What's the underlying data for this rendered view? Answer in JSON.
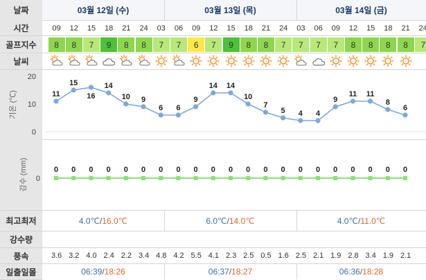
{
  "labels": {
    "date": "날짜",
    "time": "시간",
    "golf_index": "골프지수",
    "weather": "날씨",
    "temperature": "기온 (℃)",
    "precipitation": "강수 (mm)",
    "minmax": "최고최저",
    "rain_amount": "강수량",
    "wind_speed": "풍속",
    "sunrise_sunset": "일출일몰"
  },
  "days": [
    {
      "label": "03월 12일 (수)",
      "min": "4.0℃",
      "max": "16.0℃",
      "sunrise": "06:39",
      "sunset": "18:26"
    },
    {
      "label": "03월 13일 (목)",
      "min": "6.0℃",
      "max": "14.0℃",
      "sunrise": "06:37",
      "sunset": "18:27"
    },
    {
      "label": "03월 14일 (금)",
      "min": "4.0℃",
      "max": "11.0℃",
      "sunrise": "06:36",
      "sunset": "18:28"
    }
  ],
  "slots": [
    {
      "time": "09",
      "golf": "8",
      "weather": "partly-cloudy-icon",
      "temp": "11",
      "rain": "0",
      "wind": "3.6"
    },
    {
      "time": "12",
      "golf": "8",
      "weather": "partly-cloudy-icon",
      "temp": "15",
      "rain": "0",
      "wind": "3.2"
    },
    {
      "time": "15",
      "golf": "7",
      "weather": "partly-cloudy-icon",
      "temp": "16",
      "rain": "0",
      "wind": "4.0"
    },
    {
      "time": "18",
      "golf": "9",
      "weather": "cloudy-icon",
      "temp": "14",
      "rain": "0",
      "wind": "2.4"
    },
    {
      "time": "21",
      "golf": "8",
      "weather": "partly-cloudy-icon",
      "temp": "10",
      "rain": "0",
      "wind": "2.2"
    },
    {
      "time": "24",
      "golf": "8",
      "weather": "partly-cloudy-icon",
      "temp": "9",
      "rain": "0",
      "wind": "3.4"
    },
    {
      "time": "03",
      "golf": "7",
      "weather": "sunny-icon",
      "temp": "6",
      "rain": "0",
      "wind": "4.8"
    },
    {
      "time": "06",
      "golf": "7",
      "weather": "partly-cloudy-icon",
      "temp": "6",
      "rain": "0",
      "wind": "4.2"
    },
    {
      "time": "09",
      "golf": "6",
      "weather": "sunny-icon",
      "temp": "9",
      "rain": "0",
      "wind": "5.5"
    },
    {
      "time": "12",
      "golf": "7",
      "weather": "sunny-icon",
      "temp": "14",
      "rain": "0",
      "wind": "4.1"
    },
    {
      "time": "15",
      "golf": "9",
      "weather": "sunny-icon",
      "temp": "14",
      "rain": "0",
      "wind": "2.3"
    },
    {
      "time": "18",
      "golf": "8",
      "weather": "sunny-icon",
      "temp": "10",
      "rain": "0",
      "wind": "2.5"
    },
    {
      "time": "21",
      "golf": "8",
      "weather": "sunny-icon",
      "temp": "7",
      "rain": "0",
      "wind": "0.5"
    },
    {
      "time": "24",
      "golf": "7",
      "weather": "sunny-icon",
      "temp": "5",
      "rain": "0",
      "wind": "1.6"
    },
    {
      "time": "03",
      "golf": "7",
      "weather": "partly-cloudy-icon",
      "temp": "4",
      "rain": "0",
      "wind": "2.5"
    },
    {
      "time": "06",
      "golf": "7",
      "weather": "cloudy-icon",
      "temp": "4",
      "rain": "0",
      "wind": "2.1"
    },
    {
      "time": "09",
      "golf": "7",
      "weather": "sunny-icon",
      "temp": "9",
      "rain": "0",
      "wind": "1.9"
    },
    {
      "time": "12",
      "golf": "8",
      "weather": "sunny-icon",
      "temp": "11",
      "rain": "0",
      "wind": "2.8"
    },
    {
      "time": "15",
      "golf": "8",
      "weather": "sunny-icon",
      "temp": "11",
      "rain": "0",
      "wind": "3.4"
    },
    {
      "time": "18",
      "golf": "8",
      "weather": "sunny-icon",
      "temp": "8",
      "rain": "0",
      "wind": "1.9"
    },
    {
      "time": "21",
      "golf": "8",
      "weather": "sunny-icon",
      "temp": "6",
      "rain": "0",
      "wind": "2.1"
    },
    {
      "time": "24",
      "golf": "7",
      "weather": "",
      "temp": "",
      "rain": "",
      "wind": ""
    }
  ],
  "golf_colors": {
    "6": "#ffe94a",
    "7": "#b8e87a",
    "8": "#8ed64f",
    "9": "#4fc03a"
  },
  "colors": {
    "temp_line": "#7ba9dd",
    "temp_point": "#7ba9dd",
    "rain_line": "#8ee07a",
    "min_text": "#3a6fb4",
    "max_text": "#e0662a"
  },
  "chart_data": [
    {
      "type": "line",
      "ylabel": "기온 (℃)",
      "x": [
        "09",
        "12",
        "15",
        "18",
        "21",
        "24",
        "03",
        "06",
        "09",
        "12",
        "15",
        "18",
        "21",
        "24",
        "03",
        "06",
        "09",
        "12",
        "15",
        "18",
        "21"
      ],
      "series": [
        {
          "values": [
            11,
            15,
            16,
            14,
            10,
            9,
            6,
            6,
            9,
            14,
            14,
            10,
            7,
            5,
            4,
            4,
            9,
            11,
            11,
            8,
            6
          ]
        }
      ],
      "yticks": [
        "0",
        "10",
        "20"
      ],
      "ylim": [
        0,
        20
      ]
    },
    {
      "type": "line",
      "ylabel": "강수 (mm)",
      "x": [
        "09",
        "12",
        "15",
        "18",
        "21",
        "24",
        "03",
        "06",
        "09",
        "12",
        "15",
        "18",
        "21",
        "24",
        "03",
        "06",
        "09",
        "12",
        "15",
        "18",
        "21"
      ],
      "series": [
        {
          "values": [
            0,
            0,
            0,
            0,
            0,
            0,
            0,
            0,
            0,
            0,
            0,
            0,
            0,
            0,
            0,
            0,
            0,
            0,
            0,
            0,
            0
          ]
        }
      ],
      "yticks": [
        "0"
      ]
    }
  ]
}
